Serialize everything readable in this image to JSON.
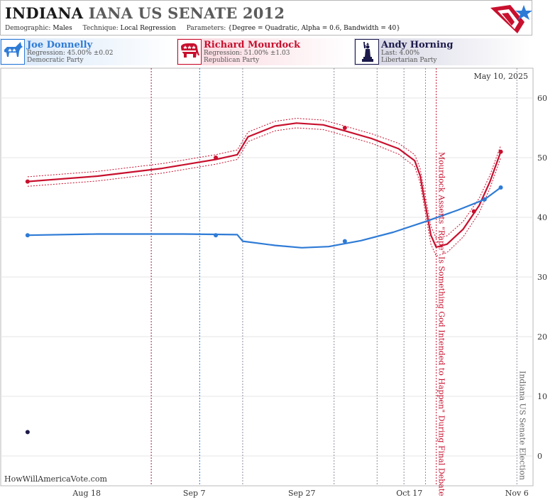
{
  "header": {
    "title_state": "INDIANA",
    "title_race": "IANA US SENATE 2012",
    "demographic_label": "Demographic:",
    "demographic_value": "Males",
    "technique_label": "Technique:",
    "technique_value": "Local Regression",
    "parameters_label": "Parameters:",
    "parameters_value": "{Degree = Quadratic, Alpha = 0.6, Bandwidth = 40}"
  },
  "candidates": [
    {
      "name": "Joe Donnelly",
      "stat": "Regression: 45.00% ±0.02",
      "party": "Democratic Party",
      "icon": "donkey-icon",
      "color": "#2e7bd6"
    },
    {
      "name": "Richard Mourdock",
      "stat": "Regression: 51.00% ±1.03",
      "party": "Republican Party",
      "icon": "elephant-icon",
      "color": "#c8102e"
    },
    {
      "name": "Andy Horning",
      "stat": "Last: 4.00%",
      "party": "Libertarian Party",
      "icon": "statue-of-liberty-icon",
      "color": "#1c1a4a"
    }
  ],
  "chart_data": {
    "type": "line",
    "date_label": "May 10, 2025",
    "watermark": "HowWillAmericaVote.com",
    "x_ticks": [
      "Aug 18",
      "Sep 7",
      "Sep 27",
      "Oct 17",
      "Nov 6"
    ],
    "y_ticks": [
      0,
      10,
      20,
      30,
      40,
      50,
      60
    ],
    "ylim": [
      -5,
      65
    ],
    "xlim": [
      "2012-08-02",
      "2012-11-09"
    ],
    "grid": true,
    "series": [
      {
        "name": "Richard Mourdock",
        "color": "#c8102e",
        "polls": [
          {
            "date": "2012-08-07",
            "value": 46
          },
          {
            "date": "2012-09-11",
            "value": 50
          },
          {
            "date": "2012-10-05",
            "value": 55
          },
          {
            "date": "2012-10-29",
            "value": 41
          },
          {
            "date": "2012-11-03",
            "value": 51
          }
        ],
        "trend": [
          {
            "date": "2012-08-07",
            "value": 46.0,
            "ci": 0.8
          },
          {
            "date": "2012-08-20",
            "value": 46.9,
            "ci": 0.8
          },
          {
            "date": "2012-09-01",
            "value": 48.2,
            "ci": 0.8
          },
          {
            "date": "2012-09-11",
            "value": 49.7,
            "ci": 0.8
          },
          {
            "date": "2012-09-15",
            "value": 50.5,
            "ci": 0.8
          },
          {
            "date": "2012-09-17",
            "value": 53.5,
            "ci": 0.8
          },
          {
            "date": "2012-09-22",
            "value": 55.3,
            "ci": 0.8
          },
          {
            "date": "2012-09-26",
            "value": 55.8,
            "ci": 0.8
          },
          {
            "date": "2012-10-01",
            "value": 55.5,
            "ci": 0.8
          },
          {
            "date": "2012-10-05",
            "value": 54.5,
            "ci": 0.8
          },
          {
            "date": "2012-10-10",
            "value": 53.2,
            "ci": 0.8
          },
          {
            "date": "2012-10-15",
            "value": 51.5,
            "ci": 0.9
          },
          {
            "date": "2012-10-18",
            "value": 49.5,
            "ci": 1.0
          },
          {
            "date": "2012-10-19",
            "value": 47.0,
            "ci": 1.2
          },
          {
            "date": "2012-10-20",
            "value": 42.0,
            "ci": 1.4
          },
          {
            "date": "2012-10-21",
            "value": 37.0,
            "ci": 1.5
          },
          {
            "date": "2012-10-22",
            "value": 35.0,
            "ci": 1.5
          },
          {
            "date": "2012-10-24",
            "value": 35.5,
            "ci": 1.4
          },
          {
            "date": "2012-10-27",
            "value": 38.0,
            "ci": 1.3
          },
          {
            "date": "2012-10-30",
            "value": 42.0,
            "ci": 1.2
          },
          {
            "date": "2012-11-01",
            "value": 46.0,
            "ci": 1.1
          },
          {
            "date": "2012-11-03",
            "value": 51.0,
            "ci": 1.03
          }
        ]
      },
      {
        "name": "Joe Donnelly",
        "color": "#2e7bd6",
        "polls": [
          {
            "date": "2012-08-07",
            "value": 37
          },
          {
            "date": "2012-09-11",
            "value": 37
          },
          {
            "date": "2012-10-05",
            "value": 36
          },
          {
            "date": "2012-10-31",
            "value": 43
          },
          {
            "date": "2012-11-03",
            "value": 45
          }
        ],
        "trend": [
          {
            "date": "2012-08-07",
            "value": 37.0
          },
          {
            "date": "2012-08-20",
            "value": 37.2
          },
          {
            "date": "2012-09-05",
            "value": 37.2
          },
          {
            "date": "2012-09-15",
            "value": 37.1
          },
          {
            "date": "2012-09-16",
            "value": 36.0
          },
          {
            "date": "2012-09-22",
            "value": 35.3
          },
          {
            "date": "2012-09-27",
            "value": 34.9
          },
          {
            "date": "2012-10-02",
            "value": 35.1
          },
          {
            "date": "2012-10-08",
            "value": 36.1
          },
          {
            "date": "2012-10-14",
            "value": 37.5
          },
          {
            "date": "2012-10-20",
            "value": 39.3
          },
          {
            "date": "2012-10-26",
            "value": 41.2
          },
          {
            "date": "2012-10-31",
            "value": 43.0
          },
          {
            "date": "2012-11-03",
            "value": 45.0
          }
        ]
      },
      {
        "name": "Andy Horning",
        "color": "#1c1a4a",
        "polls": [
          {
            "date": "2012-08-07",
            "value": 4
          }
        ]
      }
    ],
    "event_lines": [
      {
        "date": "2012-08-30",
        "color": "#9c1c4c"
      },
      {
        "date": "2012-09-08",
        "color": "#2e7bd6"
      },
      {
        "date": "2012-09-16",
        "color": "#8e8ea0"
      },
      {
        "date": "2012-10-03",
        "color": "#8e8ea0"
      },
      {
        "date": "2012-10-11",
        "color": "#8e8ea0"
      },
      {
        "date": "2012-10-16",
        "color": "#8e8ea0"
      },
      {
        "date": "2012-10-20",
        "color": "#8e8ea0"
      },
      {
        "date": "2012-10-22",
        "color": "#c8102e"
      },
      {
        "date": "2012-11-06",
        "color": "#8e8ea0"
      }
    ],
    "annotations": [
      {
        "date": "2012-10-22",
        "text": "Mourdock Asserts \"Rape\" Is Something God Intended to Happen\" During Final Debate",
        "color": "#c8102e"
      },
      {
        "date": "2012-11-06",
        "text": "Indiana US Senate Election",
        "color": "#666666"
      }
    ]
  }
}
